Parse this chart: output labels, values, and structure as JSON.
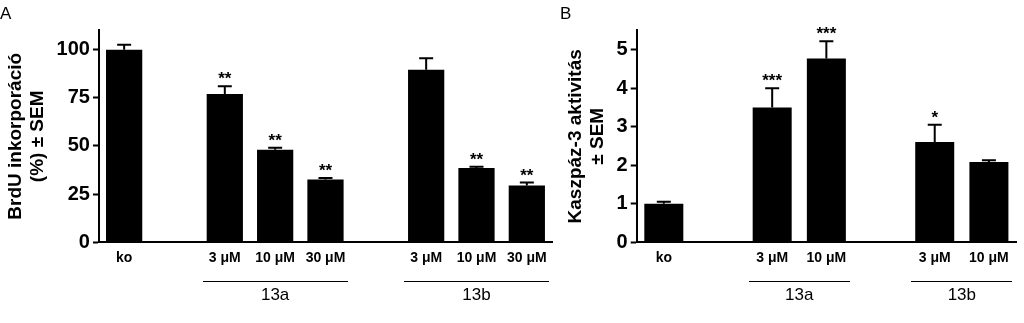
{
  "chart_data": [
    {
      "type": "bar",
      "title": "A",
      "ylabel": "BrdU inkorporáció\n(%) ± SEM",
      "categories": [
        "ko",
        null,
        "3 μM",
        "10 μM",
        "30 μM",
        null,
        "3 μM",
        "10 μM",
        "30 μM"
      ],
      "values": [
        100,
        null,
        77,
        48,
        32.5,
        null,
        89.5,
        38.5,
        29.5
      ],
      "errors": [
        [
          100,
          102.5
        ],
        null,
        [
          77,
          81
        ],
        [
          48,
          49
        ],
        [
          32.5,
          33.3
        ],
        null,
        [
          89.5,
          95.5
        ],
        [
          38.5,
          39.2
        ],
        [
          29.5,
          31
        ]
      ],
      "value_labels": [
        null,
        null,
        "**",
        "**",
        "**",
        null,
        null,
        "**",
        "**"
      ],
      "color": "#000000",
      "ylim": [
        0,
        110
      ],
      "yticks": [
        0,
        25,
        50,
        75,
        100
      ],
      "grid": false,
      "annotations": [
        "13a",
        "13b"
      ]
    },
    {
      "type": "bar",
      "title": "B",
      "ylabel": "Kaszpáz-3 aktivitás\n± SEM",
      "categories": [
        "ko",
        null,
        "3 μM",
        "10 μM",
        null,
        "3 μM",
        "10 μM"
      ],
      "values": [
        1.0,
        null,
        3.5,
        4.77,
        null,
        2.6,
        2.08
      ],
      "errors": [
        [
          1.0,
          1.05
        ],
        null,
        [
          3.5,
          4.0
        ],
        [
          4.77,
          5.22
        ],
        null,
        [
          2.6,
          3.05
        ],
        [
          2.08,
          2.13
        ]
      ],
      "value_labels": [
        null,
        null,
        "***",
        "***",
        null,
        "*",
        null
      ],
      "color": "#000000",
      "ylim": [
        0,
        5.5
      ],
      "yticks": [
        0,
        1,
        2,
        3,
        4,
        5
      ],
      "grid": false,
      "annotations": [
        "13a",
        "13b"
      ]
    }
  ]
}
